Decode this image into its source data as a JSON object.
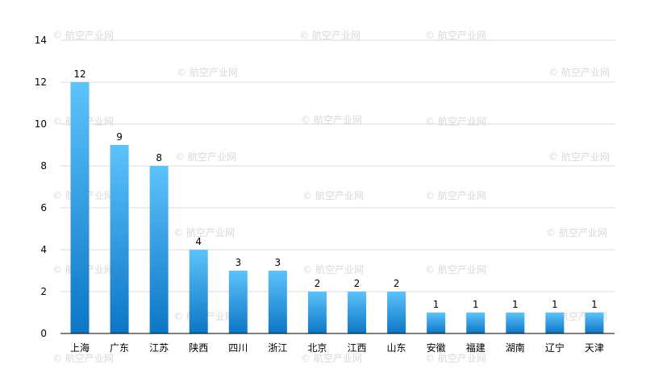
{
  "chart_data": {
    "type": "bar",
    "categories": [
      "上海",
      "广东",
      "江苏",
      "陕西",
      "四川",
      "浙江",
      "北京",
      "江西",
      "山东",
      "安徽",
      "福建",
      "湖南",
      "辽宁",
      "天津"
    ],
    "values": [
      12,
      9,
      8,
      4,
      3,
      3,
      2,
      2,
      2,
      1,
      1,
      1,
      1,
      1
    ],
    "title": "",
    "xlabel": "",
    "ylabel": "",
    "ylim": [
      0,
      14
    ],
    "yticks": [
      0,
      2,
      4,
      6,
      8,
      10,
      12,
      14
    ],
    "grid": true,
    "data_labels": true,
    "bar_gradient": [
      "#5cc3fb",
      "#0c76c6"
    ],
    "watermark": "© 航空产业网"
  }
}
